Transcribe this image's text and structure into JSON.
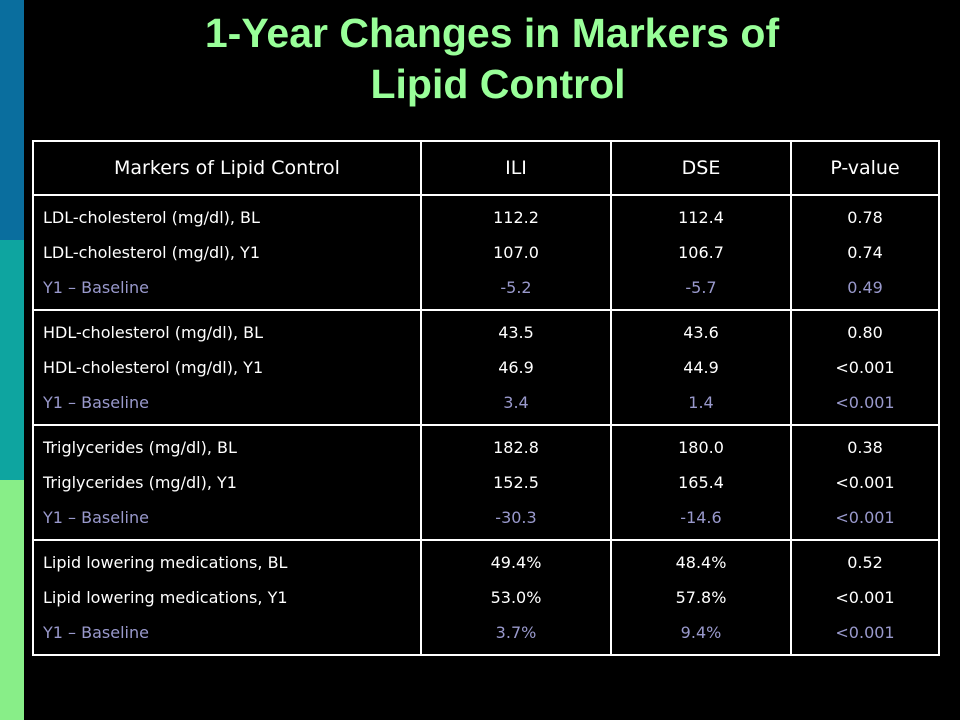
{
  "colors": {
    "background": "#000000",
    "title": "#99ff99",
    "text": "#ffffff",
    "change_row": "#9999cc",
    "sidebar_top": "#0a6e9e",
    "sidebar_middle": "#0ea5a0",
    "sidebar_bottom": "#88ee88"
  },
  "title": {
    "line1": "1-Year Changes in Markers of",
    "line2": "Lipid Control"
  },
  "table": {
    "headers": [
      "Markers of Lipid Control",
      "ILI",
      "DSE",
      "P-value"
    ],
    "groups": [
      {
        "labels": [
          "LDL-cholesterol (mg/dl), BL",
          "LDL-cholesterol (mg/dl), Y1",
          "Y1 – Baseline"
        ],
        "ili": [
          "112.2",
          "107.0",
          "-5.2"
        ],
        "dse": [
          "112.4",
          "106.7",
          "-5.7"
        ],
        "p": [
          "0.78",
          "0.74",
          "0.49"
        ]
      },
      {
        "labels": [
          "HDL-cholesterol (mg/dl), BL",
          "HDL-cholesterol (mg/dl), Y1",
          "Y1 – Baseline"
        ],
        "ili": [
          "43.5",
          "46.9",
          "3.4"
        ],
        "dse": [
          "43.6",
          "44.9",
          "1.4"
        ],
        "p": [
          "0.80",
          "<0.001",
          "<0.001"
        ]
      },
      {
        "labels": [
          "Triglycerides (mg/dl), BL",
          "Triglycerides (mg/dl), Y1",
          "Y1 – Baseline"
        ],
        "ili": [
          "182.8",
          "152.5",
          "-30.3"
        ],
        "dse": [
          "180.0",
          "165.4",
          "-14.6"
        ],
        "p": [
          "0.38",
          "<0.001",
          "<0.001"
        ]
      },
      {
        "labels": [
          "Lipid lowering medications, BL",
          "Lipid lowering medications, Y1",
          "Y1 – Baseline"
        ],
        "ili": [
          "49.4%",
          "53.0%",
          "3.7%"
        ],
        "dse": [
          "48.4%",
          "57.8%",
          "9.4%"
        ],
        "p": [
          "0.52",
          "<0.001",
          "<0.001"
        ]
      }
    ]
  }
}
